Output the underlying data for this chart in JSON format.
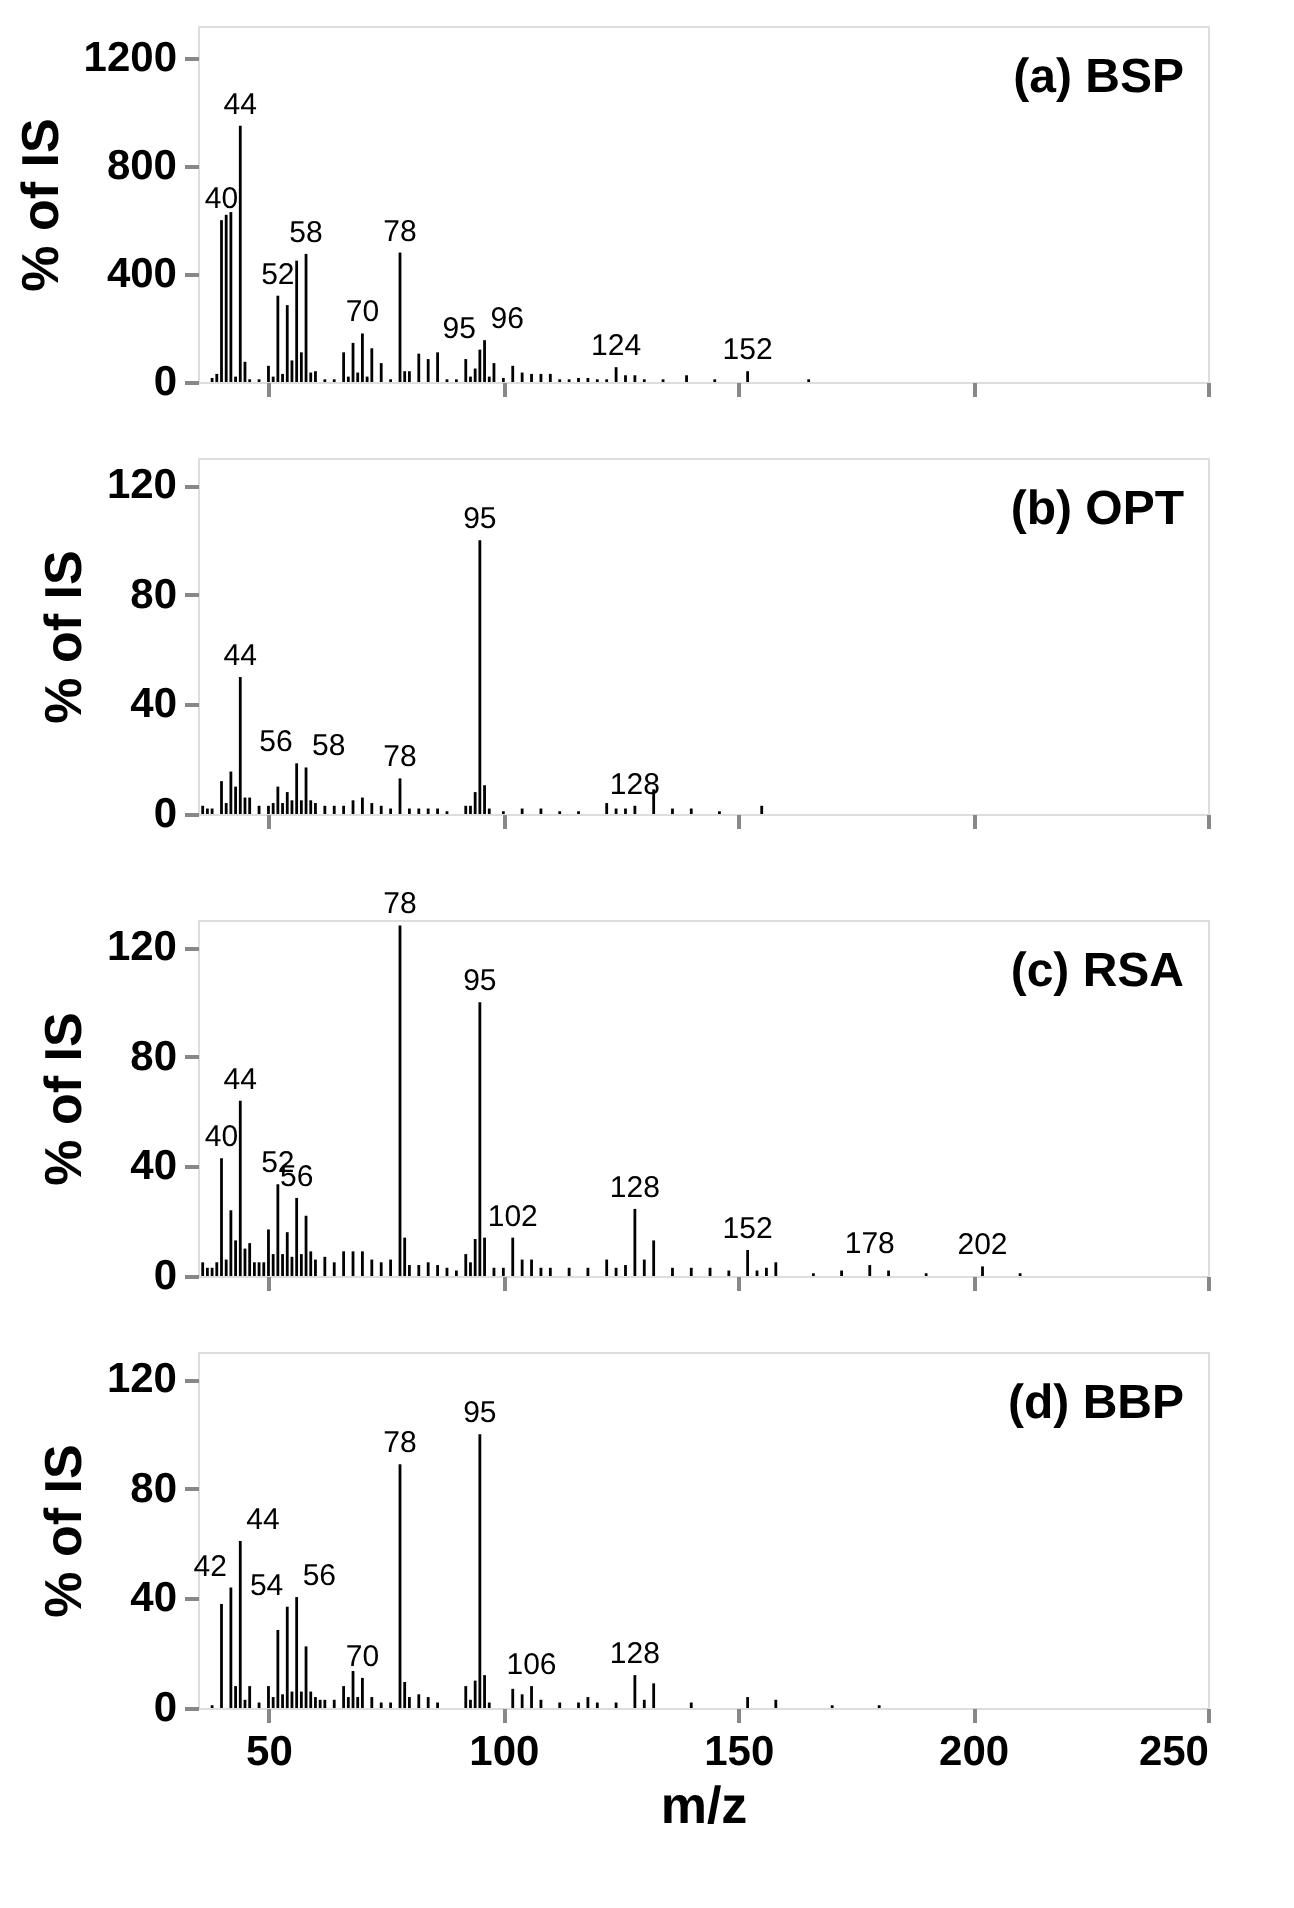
{
  "chart_data": [
    {
      "type": "bar",
      "title": "(a) BSP",
      "ylabel": "% of IS",
      "xlim": [
        35,
        250
      ],
      "xticks": [
        50,
        100,
        150,
        200,
        250
      ],
      "ylim": [
        0,
        1320
      ],
      "yticks": [
        0,
        400,
        800,
        1200
      ],
      "tick_labels": "y",
      "grid": false,
      "x": [
        38,
        39,
        40,
        41,
        42,
        43,
        44,
        45,
        46,
        48,
        50,
        51,
        52,
        53,
        54,
        55,
        56,
        57,
        58,
        59,
        60,
        62,
        64,
        66,
        67,
        68,
        69,
        70,
        71,
        72,
        74,
        76,
        78,
        79,
        80,
        82,
        84,
        86,
        88,
        90,
        92,
        93,
        94,
        95,
        96,
        97,
        98,
        100,
        102,
        104,
        106,
        108,
        110,
        112,
        114,
        116,
        118,
        120,
        122,
        124,
        126,
        128,
        130,
        134,
        139,
        145,
        152,
        165
      ],
      "series": [
        {
          "color": "#000000",
          "values": [
            15,
            30,
            600,
            620,
            630,
            20,
            950,
            75,
            10,
            10,
            60,
            20,
            320,
            30,
            285,
            80,
            450,
            110,
            475,
            35,
            40,
            10,
            10,
            110,
            20,
            145,
            35,
            180,
            20,
            125,
            70,
            10,
            480,
            40,
            40,
            105,
            85,
            110,
            10,
            10,
            85,
            20,
            50,
            120,
            155,
            20,
            70,
            15,
            60,
            35,
            30,
            30,
            30,
            10,
            10,
            15,
            15,
            10,
            10,
            55,
            25,
            25,
            10,
            10,
            25,
            10,
            40,
            10
          ]
        }
      ],
      "annotations": [
        {
          "text": "40",
          "x": 40,
          "y": 600
        },
        {
          "text": "44",
          "x": 44,
          "y": 950
        },
        {
          "text": "52",
          "x": 52,
          "y": 320
        },
        {
          "text": "58",
          "x": 58,
          "y": 475
        },
        {
          "text": "70",
          "x": 70,
          "y": 180
        },
        {
          "text": "78",
          "x": 78,
          "y": 480
        },
        {
          "text": "95",
          "x": 95,
          "y": 120
        },
        {
          "text": "96",
          "x": 96,
          "y": 155
        },
        {
          "text": "124",
          "x": 124,
          "y": 55
        },
        {
          "text": "152",
          "x": 152,
          "y": 40
        }
      ]
    },
    {
      "type": "bar",
      "title": "(b) OPT",
      "ylabel": "% of IS",
      "xlim": [
        35,
        250
      ],
      "xticks": [
        50,
        100,
        150,
        200,
        250
      ],
      "ylim": [
        0,
        130
      ],
      "yticks": [
        0,
        40,
        80,
        120
      ],
      "tick_labels": "y",
      "grid": false,
      "x": [
        36,
        37,
        38,
        40,
        41,
        42,
        43,
        44,
        45,
        46,
        48,
        50,
        51,
        52,
        53,
        54,
        55,
        56,
        57,
        58,
        59,
        60,
        62,
        64,
        66,
        68,
        70,
        72,
        74,
        76,
        78,
        80,
        82,
        84,
        86,
        88,
        92,
        93,
        94,
        95,
        96,
        97,
        100,
        104,
        108,
        112,
        116,
        122,
        124,
        126,
        128,
        132,
        136,
        140,
        146,
        155
      ],
      "series": [
        {
          "color": "#000000",
          "values": [
            3,
            2,
            2,
            12,
            4,
            15.5,
            10,
            50,
            6,
            6,
            3,
            3,
            4,
            10,
            4,
            8,
            5,
            18.5,
            5,
            17,
            5,
            4,
            3,
            3,
            3,
            5,
            6,
            4,
            3,
            2,
            13,
            2,
            2,
            2,
            2,
            1,
            3,
            3,
            8,
            100,
            10.5,
            2,
            1,
            2,
            2,
            1,
            1,
            4,
            2,
            2,
            3,
            9,
            2,
            2,
            1,
            3
          ]
        }
      ],
      "annotations": [
        {
          "text": "44",
          "x": 44,
          "y": 50
        },
        {
          "text": "56",
          "x": 56,
          "y": 18.5
        },
        {
          "text": "58",
          "x": 58,
          "y": 17
        },
        {
          "text": "78",
          "x": 78,
          "y": 13
        },
        {
          "text": "95",
          "x": 95,
          "y": 100
        },
        {
          "text": "128",
          "x": 128,
          "y": 3
        }
      ]
    },
    {
      "type": "bar",
      "title": "(c) RSA",
      "ylabel": "% of IS",
      "xlim": [
        35,
        250
      ],
      "xticks": [
        50,
        100,
        150,
        200,
        250
      ],
      "ylim": [
        0,
        130
      ],
      "yticks": [
        0,
        40,
        80,
        120
      ],
      "tick_labels": "y",
      "grid": false,
      "x": [
        36,
        37,
        38,
        39,
        40,
        41,
        42,
        43,
        44,
        45,
        46,
        47,
        48,
        49,
        50,
        51,
        52,
        53,
        54,
        55,
        56,
        57,
        58,
        59,
        60,
        62,
        64,
        66,
        68,
        70,
        72,
        74,
        76,
        78,
        79,
        80,
        82,
        84,
        86,
        88,
        90,
        92,
        93,
        94,
        95,
        96,
        98,
        100,
        102,
        104,
        106,
        108,
        110,
        114,
        118,
        122,
        124,
        126,
        128,
        130,
        132,
        136,
        140,
        144,
        148,
        152,
        154,
        156,
        158,
        166,
        172,
        178,
        182,
        190,
        202,
        210
      ],
      "series": [
        {
          "color": "#000000",
          "values": [
            5,
            3,
            3,
            5,
            43,
            6,
            24,
            13,
            64,
            10,
            12,
            5,
            5,
            5,
            17,
            8,
            33.5,
            8,
            16,
            7,
            28.5,
            8,
            22,
            9,
            6,
            7,
            5,
            9,
            9,
            9,
            6,
            5,
            6,
            128,
            14,
            4,
            4,
            5,
            4,
            3,
            2,
            8,
            5,
            13.5,
            100,
            14,
            3,
            3,
            14,
            6,
            6,
            3,
            3,
            3,
            3,
            6,
            3,
            4,
            24.5,
            6,
            13,
            3,
            3,
            3,
            2,
            9.5,
            2,
            3,
            5,
            1,
            2,
            4,
            2,
            1,
            3.5,
            1
          ]
        }
      ],
      "annotations": [
        {
          "text": "40",
          "x": 40,
          "y": 43
        },
        {
          "text": "44",
          "x": 44,
          "y": 64
        },
        {
          "text": "52",
          "x": 52,
          "y": 33.5
        },
        {
          "text": "56",
          "x": 56,
          "y": 28.5
        },
        {
          "text": "78",
          "x": 78,
          "y": 128
        },
        {
          "text": "95",
          "x": 95,
          "y": 100
        },
        {
          "text": "102",
          "x": 102,
          "y": 14
        },
        {
          "text": "128",
          "x": 128,
          "y": 24.5
        },
        {
          "text": "152",
          "x": 152,
          "y": 9.5
        },
        {
          "text": "178",
          "x": 178,
          "y": 4
        },
        {
          "text": "202",
          "x": 202,
          "y": 3.5
        }
      ]
    },
    {
      "type": "bar",
      "title": "(d) BBP",
      "xlabel": "m/z",
      "ylabel": "% of IS",
      "xlim": [
        35,
        250
      ],
      "xticks": [
        50,
        100,
        150,
        200,
        250
      ],
      "ylim": [
        0,
        130
      ],
      "yticks": [
        0,
        40,
        80,
        120
      ],
      "grid": false,
      "x": [
        38,
        40,
        42,
        43,
        44,
        45,
        46,
        48,
        50,
        51,
        52,
        53,
        54,
        55,
        56,
        57,
        58,
        59,
        60,
        61,
        62,
        64,
        66,
        67,
        68,
        69,
        70,
        72,
        74,
        76,
        78,
        79,
        80,
        82,
        84,
        86,
        92,
        93,
        94,
        95,
        96,
        97,
        102,
        104,
        106,
        108,
        112,
        116,
        118,
        120,
        124,
        128,
        130,
        132,
        140,
        152,
        158,
        170,
        180
      ],
      "series": [
        {
          "color": "#000000",
          "values": [
            1,
            38,
            44,
            8,
            61,
            3,
            8,
            2,
            8,
            4,
            28.5,
            5,
            37,
            6,
            40.5,
            6,
            22.5,
            6,
            4,
            3,
            3,
            3,
            8,
            4,
            13.5,
            4,
            11,
            4,
            2,
            2,
            89,
            9.5,
            4,
            5,
            4,
            2,
            8,
            3,
            10,
            100,
            12,
            2,
            7,
            5,
            8,
            3,
            2,
            2,
            4,
            2,
            2,
            12,
            3,
            9,
            2,
            4,
            3,
            1,
            1
          ]
        }
      ],
      "annotations": [
        {
          "text": "42",
          "x": 42,
          "y": 44
        },
        {
          "text": "44",
          "x": 44,
          "y": 61
        },
        {
          "text": "54",
          "x": 54,
          "y": 37
        },
        {
          "text": "56",
          "x": 56,
          "y": 40.5
        },
        {
          "text": "70",
          "x": 70,
          "y": 11
        },
        {
          "text": "78",
          "x": 78,
          "y": 89
        },
        {
          "text": "95",
          "x": 95,
          "y": 100
        },
        {
          "text": "106",
          "x": 106,
          "y": 8
        },
        {
          "text": "128",
          "x": 128,
          "y": 12
        }
      ]
    }
  ]
}
